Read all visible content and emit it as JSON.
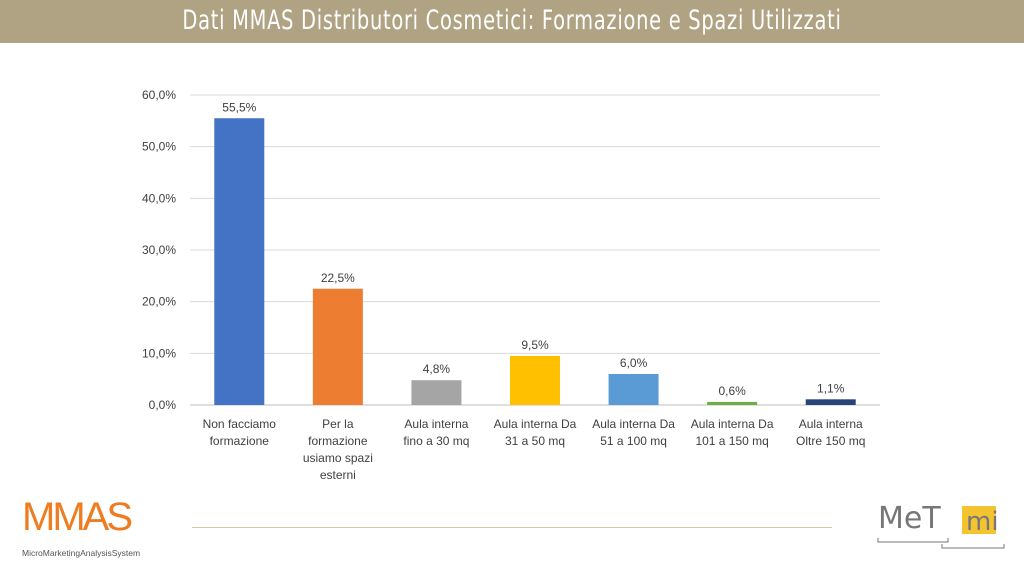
{
  "header": {
    "title": "Dati MMAS Distributori Cosmetici: Formazione e Spazi Utilizzati"
  },
  "chart_data": {
    "type": "bar",
    "title": "",
    "categories": [
      [
        "Non facciamo",
        "formazione"
      ],
      [
        "Per la",
        "formazione",
        "usiamo spazi",
        "esterni"
      ],
      [
        "Aula interna",
        "fino a 30 mq"
      ],
      [
        "Aula interna Da",
        "31 a 50 mq"
      ],
      [
        "Aula interna Da",
        "51 a 100 mq"
      ],
      [
        "Aula interna Da",
        "101 a 150 mq"
      ],
      [
        "Aula interna",
        "Oltre 150 mq"
      ]
    ],
    "values": [
      55.5,
      22.5,
      4.8,
      9.5,
      6.0,
      0.6,
      1.1
    ],
    "data_labels": [
      "55,5%",
      "22,5%",
      "4,8%",
      "9,5%",
      "6,0%",
      "0,6%",
      "1,1%"
    ],
    "colors": [
      "#4472c4",
      "#ed7d31",
      "#a5a5a5",
      "#ffc000",
      "#5b9bd5",
      "#70ad47",
      "#264478"
    ],
    "yticks": [
      "0,0%",
      "10,0%",
      "20,0%",
      "30,0%",
      "40,0%",
      "50,0%",
      "60,0%"
    ],
    "ylim": [
      0,
      60
    ],
    "grid": true,
    "legend": "none"
  },
  "logos": {
    "left": "MMAS",
    "left_sub": "MicroMarketingAnalysisSystem",
    "right": "MeT mi"
  }
}
